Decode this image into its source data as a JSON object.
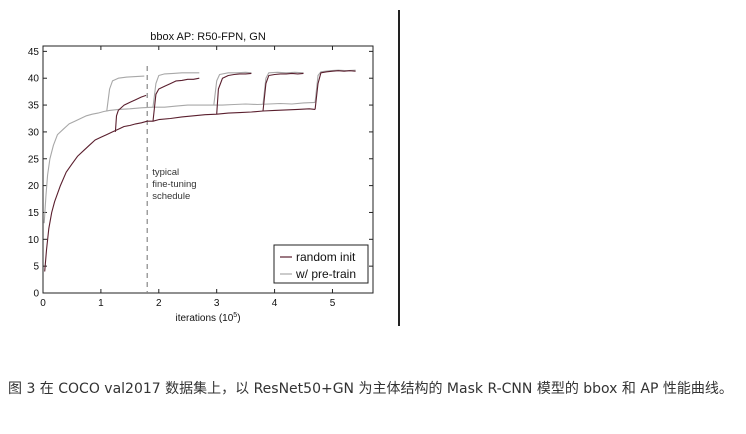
{
  "caption": "图 3 在 COCO val2017 数据集上，以 ResNet50+GN 为主体结构的 Mask R-CNN 模型的 bbox 和 AP 性能曲线。",
  "chart_data": {
    "type": "line",
    "title": "bbox AP: R50-FPN, GN",
    "xlabel_text": "iterations (10",
    "xlabel_exp": "5",
    "xlabel_close": ")",
    "ylabel": "",
    "xlim": [
      0,
      5.7
    ],
    "ylim": [
      0,
      46
    ],
    "xticks": [
      0,
      1,
      2,
      3,
      4,
      5
    ],
    "yticks": [
      0,
      5,
      10,
      15,
      20,
      25,
      30,
      35,
      40,
      45
    ],
    "grid": false,
    "legend_position": "bottom-right",
    "annotation": {
      "lines": [
        "typical",
        "fine-tuning",
        "schedule"
      ],
      "x": 1.8
    },
    "series": [
      {
        "name": "random init",
        "color": "#5a1f2e",
        "segments": [
          [
            [
              0.03,
              4
            ],
            [
              0.06,
              8
            ],
            [
              0.1,
              12
            ],
            [
              0.15,
              15
            ],
            [
              0.2,
              17
            ],
            [
              0.3,
              20
            ],
            [
              0.4,
              22.5
            ],
            [
              0.5,
              24
            ],
            [
              0.6,
              25.5
            ],
            [
              0.7,
              26.5
            ],
            [
              0.8,
              27.5
            ],
            [
              0.9,
              28.5
            ],
            [
              1.0,
              29
            ],
            [
              1.1,
              29.5
            ],
            [
              1.2,
              30
            ],
            [
              1.3,
              30.5
            ],
            [
              1.4,
              31
            ],
            [
              1.5,
              31.2
            ],
            [
              1.6,
              31.5
            ],
            [
              1.7,
              31.7
            ],
            [
              1.8,
              32
            ],
            [
              1.9,
              32
            ],
            [
              2.0,
              32.3
            ],
            [
              2.2,
              32.5
            ],
            [
              2.4,
              32.8
            ],
            [
              2.6,
              33
            ],
            [
              2.8,
              33.2
            ],
            [
              3.0,
              33.3
            ],
            [
              3.2,
              33.5
            ],
            [
              3.4,
              33.6
            ],
            [
              3.6,
              33.7
            ],
            [
              3.8,
              33.9
            ],
            [
              4.0,
              34
            ],
            [
              4.2,
              34.1
            ],
            [
              4.4,
              34.2
            ],
            [
              4.6,
              34.3
            ],
            [
              4.7,
              34.2
            ]
          ],
          [
            [
              1.25,
              30
            ],
            [
              1.27,
              33
            ],
            [
              1.3,
              34
            ],
            [
              1.4,
              35
            ],
            [
              1.5,
              35.5
            ],
            [
              1.6,
              36
            ],
            [
              1.7,
              36.5
            ],
            [
              1.78,
              36.8
            ]
          ],
          [
            [
              1.9,
              32
            ],
            [
              1.95,
              37
            ],
            [
              2.0,
              38
            ],
            [
              2.1,
              38.5
            ],
            [
              2.2,
              39
            ],
            [
              2.3,
              39.5
            ],
            [
              2.4,
              39.6
            ],
            [
              2.5,
              39.8
            ],
            [
              2.6,
              39.8
            ],
            [
              2.7,
              40
            ]
          ],
          [
            [
              3.0,
              33.3
            ],
            [
              3.03,
              38
            ],
            [
              3.1,
              40
            ],
            [
              3.2,
              40.5
            ],
            [
              3.3,
              40.7
            ],
            [
              3.4,
              40.8
            ],
            [
              3.5,
              40.8
            ],
            [
              3.6,
              40.9
            ]
          ],
          [
            [
              3.8,
              33.9
            ],
            [
              3.85,
              39
            ],
            [
              3.9,
              40.5
            ],
            [
              4.0,
              40.7
            ],
            [
              4.1,
              40.8
            ],
            [
              4.2,
              40.8
            ],
            [
              4.3,
              40.9
            ],
            [
              4.4,
              40.8
            ],
            [
              4.5,
              40.9
            ]
          ],
          [
            [
              4.7,
              34.2
            ],
            [
              4.75,
              39
            ],
            [
              4.8,
              41
            ],
            [
              4.9,
              41.2
            ],
            [
              5.0,
              41.3
            ],
            [
              5.1,
              41.4
            ],
            [
              5.2,
              41.3
            ],
            [
              5.3,
              41.4
            ],
            [
              5.4,
              41.3
            ]
          ]
        ]
      },
      {
        "name": "w/ pre-train",
        "color": "#a8a8a8",
        "segments": [
          [
            [
              0.02,
              13
            ],
            [
              0.05,
              18
            ],
            [
              0.08,
              22
            ],
            [
              0.12,
              25
            ],
            [
              0.18,
              27.5
            ],
            [
              0.25,
              29.5
            ],
            [
              0.35,
              30.5
            ],
            [
              0.45,
              31.5
            ],
            [
              0.55,
              32
            ],
            [
              0.65,
              32.5
            ],
            [
              0.75,
              33
            ],
            [
              0.85,
              33.3
            ],
            [
              0.95,
              33.5
            ],
            [
              1.05,
              33.8
            ],
            [
              1.15,
              34
            ],
            [
              1.3,
              34.2
            ],
            [
              1.5,
              34.3
            ],
            [
              1.7,
              34.5
            ],
            [
              1.9,
              34.6
            ],
            [
              2.1,
              34.6
            ],
            [
              2.3,
              34.8
            ],
            [
              2.5,
              35
            ],
            [
              2.7,
              35
            ],
            [
              2.9,
              35
            ],
            [
              3.1,
              35
            ],
            [
              3.3,
              35.1
            ],
            [
              3.5,
              35.2
            ],
            [
              3.7,
              35.1
            ],
            [
              3.9,
              35.2
            ],
            [
              4.1,
              35.3
            ],
            [
              4.3,
              35.2
            ],
            [
              4.5,
              35.4
            ],
            [
              4.7,
              35.5
            ]
          ],
          [
            [
              1.1,
              33.8
            ],
            [
              1.15,
              38
            ],
            [
              1.2,
              39.5
            ],
            [
              1.3,
              40
            ],
            [
              1.45,
              40.2
            ],
            [
              1.6,
              40.3
            ],
            [
              1.75,
              40.4
            ]
          ],
          [
            [
              1.9,
              34.6
            ],
            [
              1.95,
              39
            ],
            [
              2.0,
              40.5
            ],
            [
              2.1,
              40.8
            ],
            [
              2.25,
              40.9
            ],
            [
              2.4,
              41
            ],
            [
              2.55,
              41
            ],
            [
              2.7,
              41
            ]
          ],
          [
            [
              2.95,
              35
            ],
            [
              3.0,
              39.5
            ],
            [
              3.05,
              40.7
            ],
            [
              3.2,
              41
            ],
            [
              3.35,
              41
            ],
            [
              3.5,
              41.1
            ],
            [
              3.6,
              41
            ]
          ],
          [
            [
              3.8,
              35.1
            ],
            [
              3.85,
              40
            ],
            [
              3.9,
              41
            ],
            [
              4.05,
              41.1
            ],
            [
              4.2,
              41
            ],
            [
              4.35,
              41.1
            ],
            [
              4.5,
              41
            ]
          ],
          [
            [
              4.7,
              35.5
            ],
            [
              4.75,
              40.5
            ],
            [
              4.8,
              41.2
            ],
            [
              4.95,
              41.4
            ],
            [
              5.1,
              41.5
            ],
            [
              5.25,
              41.4
            ],
            [
              5.4,
              41.5
            ]
          ]
        ]
      }
    ]
  }
}
